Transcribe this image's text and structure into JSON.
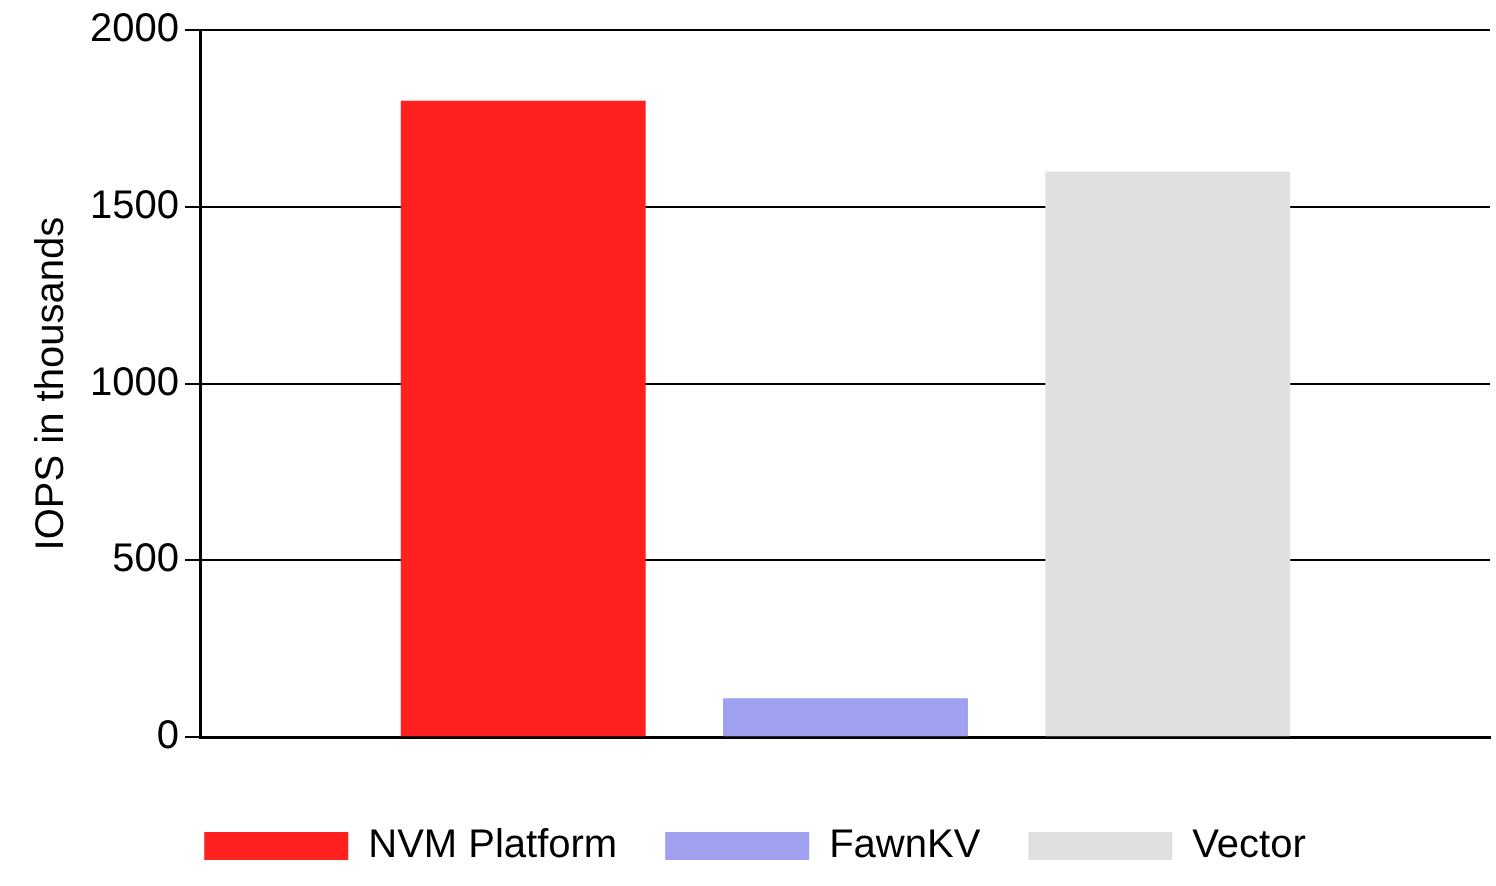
{
  "chart_data": {
    "type": "bar",
    "ylabel": "IOPS in thousands",
    "categories": [
      null
    ],
    "series": [
      {
        "name": "NVM Platform",
        "color": "#ff2020",
        "values": [
          1800
        ]
      },
      {
        "name": "FawnKV",
        "color": "#a0a0f0",
        "values": [
          110
        ]
      },
      {
        "name": "Vector",
        "color": "#e0e0e0",
        "values": [
          1600
        ]
      }
    ],
    "ylim": [
      0,
      2000
    ],
    "yticks": [
      0,
      500,
      1000,
      1500,
      2000
    ],
    "grid": "y",
    "legend": "bottom"
  }
}
